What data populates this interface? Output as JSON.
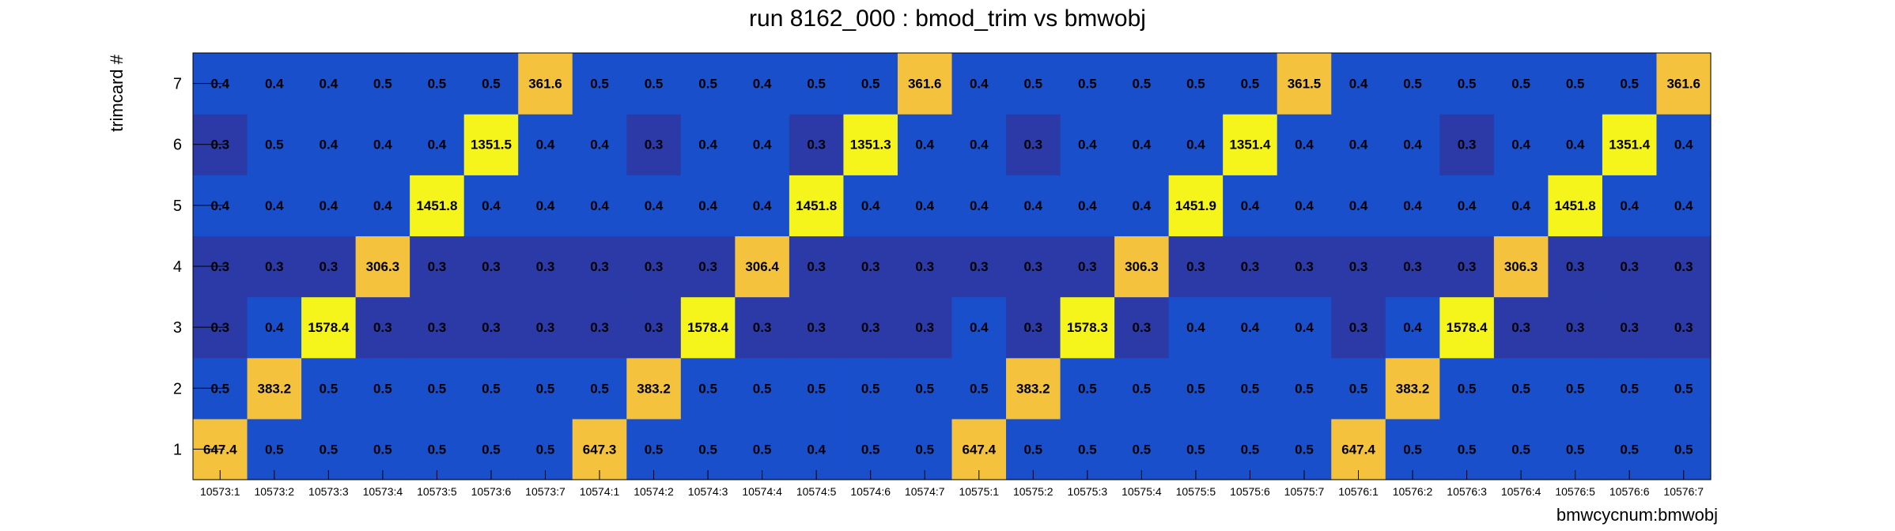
{
  "chart_data": {
    "type": "heatmap",
    "title": "run 8162_000 : bmod_trim vs bmwobj",
    "xlabel": "bmwcycnum:bmwobj",
    "ylabel": "trimcard #",
    "x_categories": [
      "10573:1",
      "10573:2",
      "10573:3",
      "10573:4",
      "10573:5",
      "10573:6",
      "10573:7",
      "10574:1",
      "10574:2",
      "10574:3",
      "10574:4",
      "10574:5",
      "10574:6",
      "10574:7",
      "10575:1",
      "10575:2",
      "10575:3",
      "10575:4",
      "10575:5",
      "10575:6",
      "10575:7",
      "10576:1",
      "10576:2",
      "10576:3",
      "10576:4",
      "10576:5",
      "10576:6",
      "10576:7"
    ],
    "y_categories": [
      "1",
      "2",
      "3",
      "4",
      "5",
      "6",
      "7"
    ],
    "values": [
      [
        "647.4",
        "0.5",
        "0.5",
        "0.5",
        "0.5",
        "0.5",
        "0.5",
        "647.3",
        "0.5",
        "0.5",
        "0.5",
        "0.4",
        "0.5",
        "0.5",
        "647.4",
        "0.5",
        "0.5",
        "0.5",
        "0.5",
        "0.5",
        "0.5",
        "647.4",
        "0.5",
        "0.5",
        "0.5",
        "0.5",
        "0.5",
        "0.5"
      ],
      [
        "0.5",
        "383.2",
        "0.5",
        "0.5",
        "0.5",
        "0.5",
        "0.5",
        "0.5",
        "383.2",
        "0.5",
        "0.5",
        "0.5",
        "0.5",
        "0.5",
        "0.5",
        "383.2",
        "0.5",
        "0.5",
        "0.5",
        "0.5",
        "0.5",
        "0.5",
        "383.2",
        "0.5",
        "0.5",
        "0.5",
        "0.5",
        "0.5"
      ],
      [
        "0.3",
        "0.4",
        "1578.4",
        "0.3",
        "0.3",
        "0.3",
        "0.3",
        "0.3",
        "0.3",
        "1578.4",
        "0.3",
        "0.3",
        "0.3",
        "0.3",
        "0.4",
        "0.3",
        "1578.3",
        "0.3",
        "0.4",
        "0.4",
        "0.4",
        "0.3",
        "0.4",
        "1578.4",
        "0.3",
        "0.3",
        "0.3",
        "0.3"
      ],
      [
        "0.3",
        "0.3",
        "0.3",
        "306.3",
        "0.3",
        "0.3",
        "0.3",
        "0.3",
        "0.3",
        "0.3",
        "306.4",
        "0.3",
        "0.3",
        "0.3",
        "0.3",
        "0.3",
        "0.3",
        "306.3",
        "0.3",
        "0.3",
        "0.3",
        "0.3",
        "0.3",
        "0.3",
        "306.3",
        "0.3",
        "0.3",
        "0.3"
      ],
      [
        "0.4",
        "0.4",
        "0.4",
        "0.4",
        "1451.8",
        "0.4",
        "0.4",
        "0.4",
        "0.4",
        "0.4",
        "0.4",
        "1451.8",
        "0.4",
        "0.4",
        "0.4",
        "0.4",
        "0.4",
        "0.4",
        "1451.9",
        "0.4",
        "0.4",
        "0.4",
        "0.4",
        "0.4",
        "0.4",
        "1451.8",
        "0.4",
        "0.4"
      ],
      [
        "0.3",
        "0.5",
        "0.4",
        "0.4",
        "0.4",
        "1351.5",
        "0.4",
        "0.4",
        "0.3",
        "0.4",
        "0.4",
        "0.3",
        "1351.3",
        "0.4",
        "0.4",
        "0.3",
        "0.4",
        "0.4",
        "0.4",
        "1351.4",
        "0.4",
        "0.4",
        "0.4",
        "0.3",
        "0.4",
        "0.4",
        "1351.4",
        "0.4"
      ],
      [
        "0.4",
        "0.4",
        "0.4",
        "0.5",
        "0.5",
        "0.5",
        "361.6",
        "0.5",
        "0.5",
        "0.5",
        "0.4",
        "0.5",
        "0.5",
        "361.6",
        "0.4",
        "0.5",
        "0.5",
        "0.5",
        "0.5",
        "0.5",
        "361.5",
        "0.4",
        "0.5",
        "0.5",
        "0.5",
        "0.5",
        "0.5",
        "361.6"
      ]
    ],
    "color_scale": [
      {
        "max": 0.35,
        "color": "#2b3aa6"
      },
      {
        "max": 0.6,
        "color": "#1a4fcc"
      },
      {
        "max": 700,
        "color": "#f4c23c"
      },
      {
        "max": 100000,
        "color": "#f6f51b"
      }
    ],
    "grid": false,
    "legend": "none"
  }
}
